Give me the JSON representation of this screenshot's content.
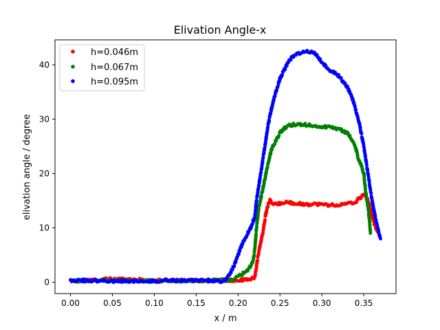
{
  "chart_data": {
    "type": "scatter",
    "title": "Elivation Angle-x",
    "xlabel": "x / m",
    "ylabel": "elivation angle / degree",
    "xlim": [
      -0.0185,
      0.3885
    ],
    "ylim": [
      -2.1,
      44.6
    ],
    "xticks": [
      0.0,
      0.05,
      0.1,
      0.15,
      0.2,
      0.25,
      0.3,
      0.35
    ],
    "xtick_labels": [
      "0.00",
      "0.05",
      "0.10",
      "0.15",
      "0.20",
      "0.25",
      "0.30",
      "0.35"
    ],
    "yticks": [
      0,
      10,
      20,
      30,
      40
    ],
    "ytick_labels": [
      "0",
      "10",
      "20",
      "30",
      "40"
    ],
    "grid": false,
    "legend_position": "top-left",
    "series": [
      {
        "name": "h=0.046m",
        "color": "#ff0000",
        "points": [
          [
            0.0,
            0.2
          ],
          [
            0.02,
            0.3
          ],
          [
            0.05,
            0.6
          ],
          [
            0.075,
            0.5
          ],
          [
            0.1,
            0.3
          ],
          [
            0.125,
            0.4
          ],
          [
            0.15,
            0.3
          ],
          [
            0.18,
            0.4
          ],
          [
            0.2,
            0.3
          ],
          [
            0.215,
            0.5
          ],
          [
            0.22,
            0.9
          ],
          [
            0.223,
            4.0
          ],
          [
            0.226,
            6.5
          ],
          [
            0.23,
            9.5
          ],
          [
            0.233,
            12.5
          ],
          [
            0.236,
            14.3
          ],
          [
            0.238,
            15.0
          ],
          [
            0.24,
            14.6
          ],
          [
            0.245,
            14.3
          ],
          [
            0.25,
            14.5
          ],
          [
            0.26,
            14.7
          ],
          [
            0.27,
            14.5
          ],
          [
            0.28,
            14.3
          ],
          [
            0.29,
            14.4
          ],
          [
            0.3,
            14.3
          ],
          [
            0.31,
            14.2
          ],
          [
            0.32,
            14.2
          ],
          [
            0.33,
            14.4
          ],
          [
            0.34,
            14.7
          ],
          [
            0.345,
            15.5
          ],
          [
            0.35,
            16.0
          ],
          [
            0.354,
            15.5
          ],
          [
            0.358,
            13.5
          ],
          [
            0.362,
            11.0
          ],
          [
            0.366,
            9.5
          ],
          [
            0.369,
            8.5
          ]
        ]
      },
      {
        "name": "h=0.067m",
        "color": "#008000",
        "points": [
          [
            0.0,
            0.3
          ],
          [
            0.02,
            0.2
          ],
          [
            0.05,
            0.3
          ],
          [
            0.1,
            0.2
          ],
          [
            0.15,
            0.3
          ],
          [
            0.185,
            0.3
          ],
          [
            0.195,
            0.5
          ],
          [
            0.2,
            1.0
          ],
          [
            0.205,
            1.5
          ],
          [
            0.21,
            2.0
          ],
          [
            0.215,
            3.0
          ],
          [
            0.218,
            4.0
          ],
          [
            0.22,
            6.0
          ],
          [
            0.222,
            10.0
          ],
          [
            0.225,
            14.0
          ],
          [
            0.228,
            16.0
          ],
          [
            0.232,
            19.0
          ],
          [
            0.236,
            22.0
          ],
          [
            0.24,
            24.5
          ],
          [
            0.245,
            26.0
          ],
          [
            0.25,
            27.5
          ],
          [
            0.255,
            28.3
          ],
          [
            0.26,
            28.8
          ],
          [
            0.27,
            29.1
          ],
          [
            0.28,
            29.0
          ],
          [
            0.29,
            28.8
          ],
          [
            0.3,
            28.6
          ],
          [
            0.31,
            28.5
          ],
          [
            0.32,
            28.2
          ],
          [
            0.33,
            27.5
          ],
          [
            0.335,
            26.5
          ],
          [
            0.34,
            25.0
          ],
          [
            0.343,
            23.0
          ],
          [
            0.346,
            22.0
          ],
          [
            0.35,
            20.0
          ],
          [
            0.352,
            17.0
          ],
          [
            0.355,
            14.0
          ],
          [
            0.357,
            11.0
          ],
          [
            0.358,
            9.0
          ]
        ]
      },
      {
        "name": "h=0.095m",
        "color": "#0000ff",
        "points": [
          [
            0.0,
            0.4
          ],
          [
            0.02,
            0.3
          ],
          [
            0.05,
            0.2
          ],
          [
            0.1,
            0.2
          ],
          [
            0.15,
            0.3
          ],
          [
            0.18,
            0.2
          ],
          [
            0.185,
            0.5
          ],
          [
            0.19,
            1.5
          ],
          [
            0.195,
            3.0
          ],
          [
            0.2,
            5.0
          ],
          [
            0.205,
            7.0
          ],
          [
            0.21,
            8.5
          ],
          [
            0.215,
            10.0
          ],
          [
            0.22,
            12.0
          ],
          [
            0.222,
            15.0
          ],
          [
            0.225,
            18.0
          ],
          [
            0.228,
            21.0
          ],
          [
            0.232,
            25.0
          ],
          [
            0.236,
            29.0
          ],
          [
            0.24,
            32.0
          ],
          [
            0.245,
            35.0
          ],
          [
            0.25,
            37.5
          ],
          [
            0.255,
            39.0
          ],
          [
            0.26,
            40.5
          ],
          [
            0.265,
            41.5
          ],
          [
            0.27,
            42.0
          ],
          [
            0.28,
            42.5
          ],
          [
            0.29,
            42.3
          ],
          [
            0.295,
            41.5
          ],
          [
            0.3,
            40.5
          ],
          [
            0.31,
            39.0
          ],
          [
            0.32,
            38.0
          ],
          [
            0.33,
            36.0
          ],
          [
            0.335,
            34.5
          ],
          [
            0.34,
            32.0
          ],
          [
            0.345,
            29.0
          ],
          [
            0.35,
            25.0
          ],
          [
            0.355,
            20.0
          ],
          [
            0.36,
            15.0
          ],
          [
            0.365,
            11.0
          ],
          [
            0.37,
            8.0
          ]
        ]
      }
    ]
  }
}
